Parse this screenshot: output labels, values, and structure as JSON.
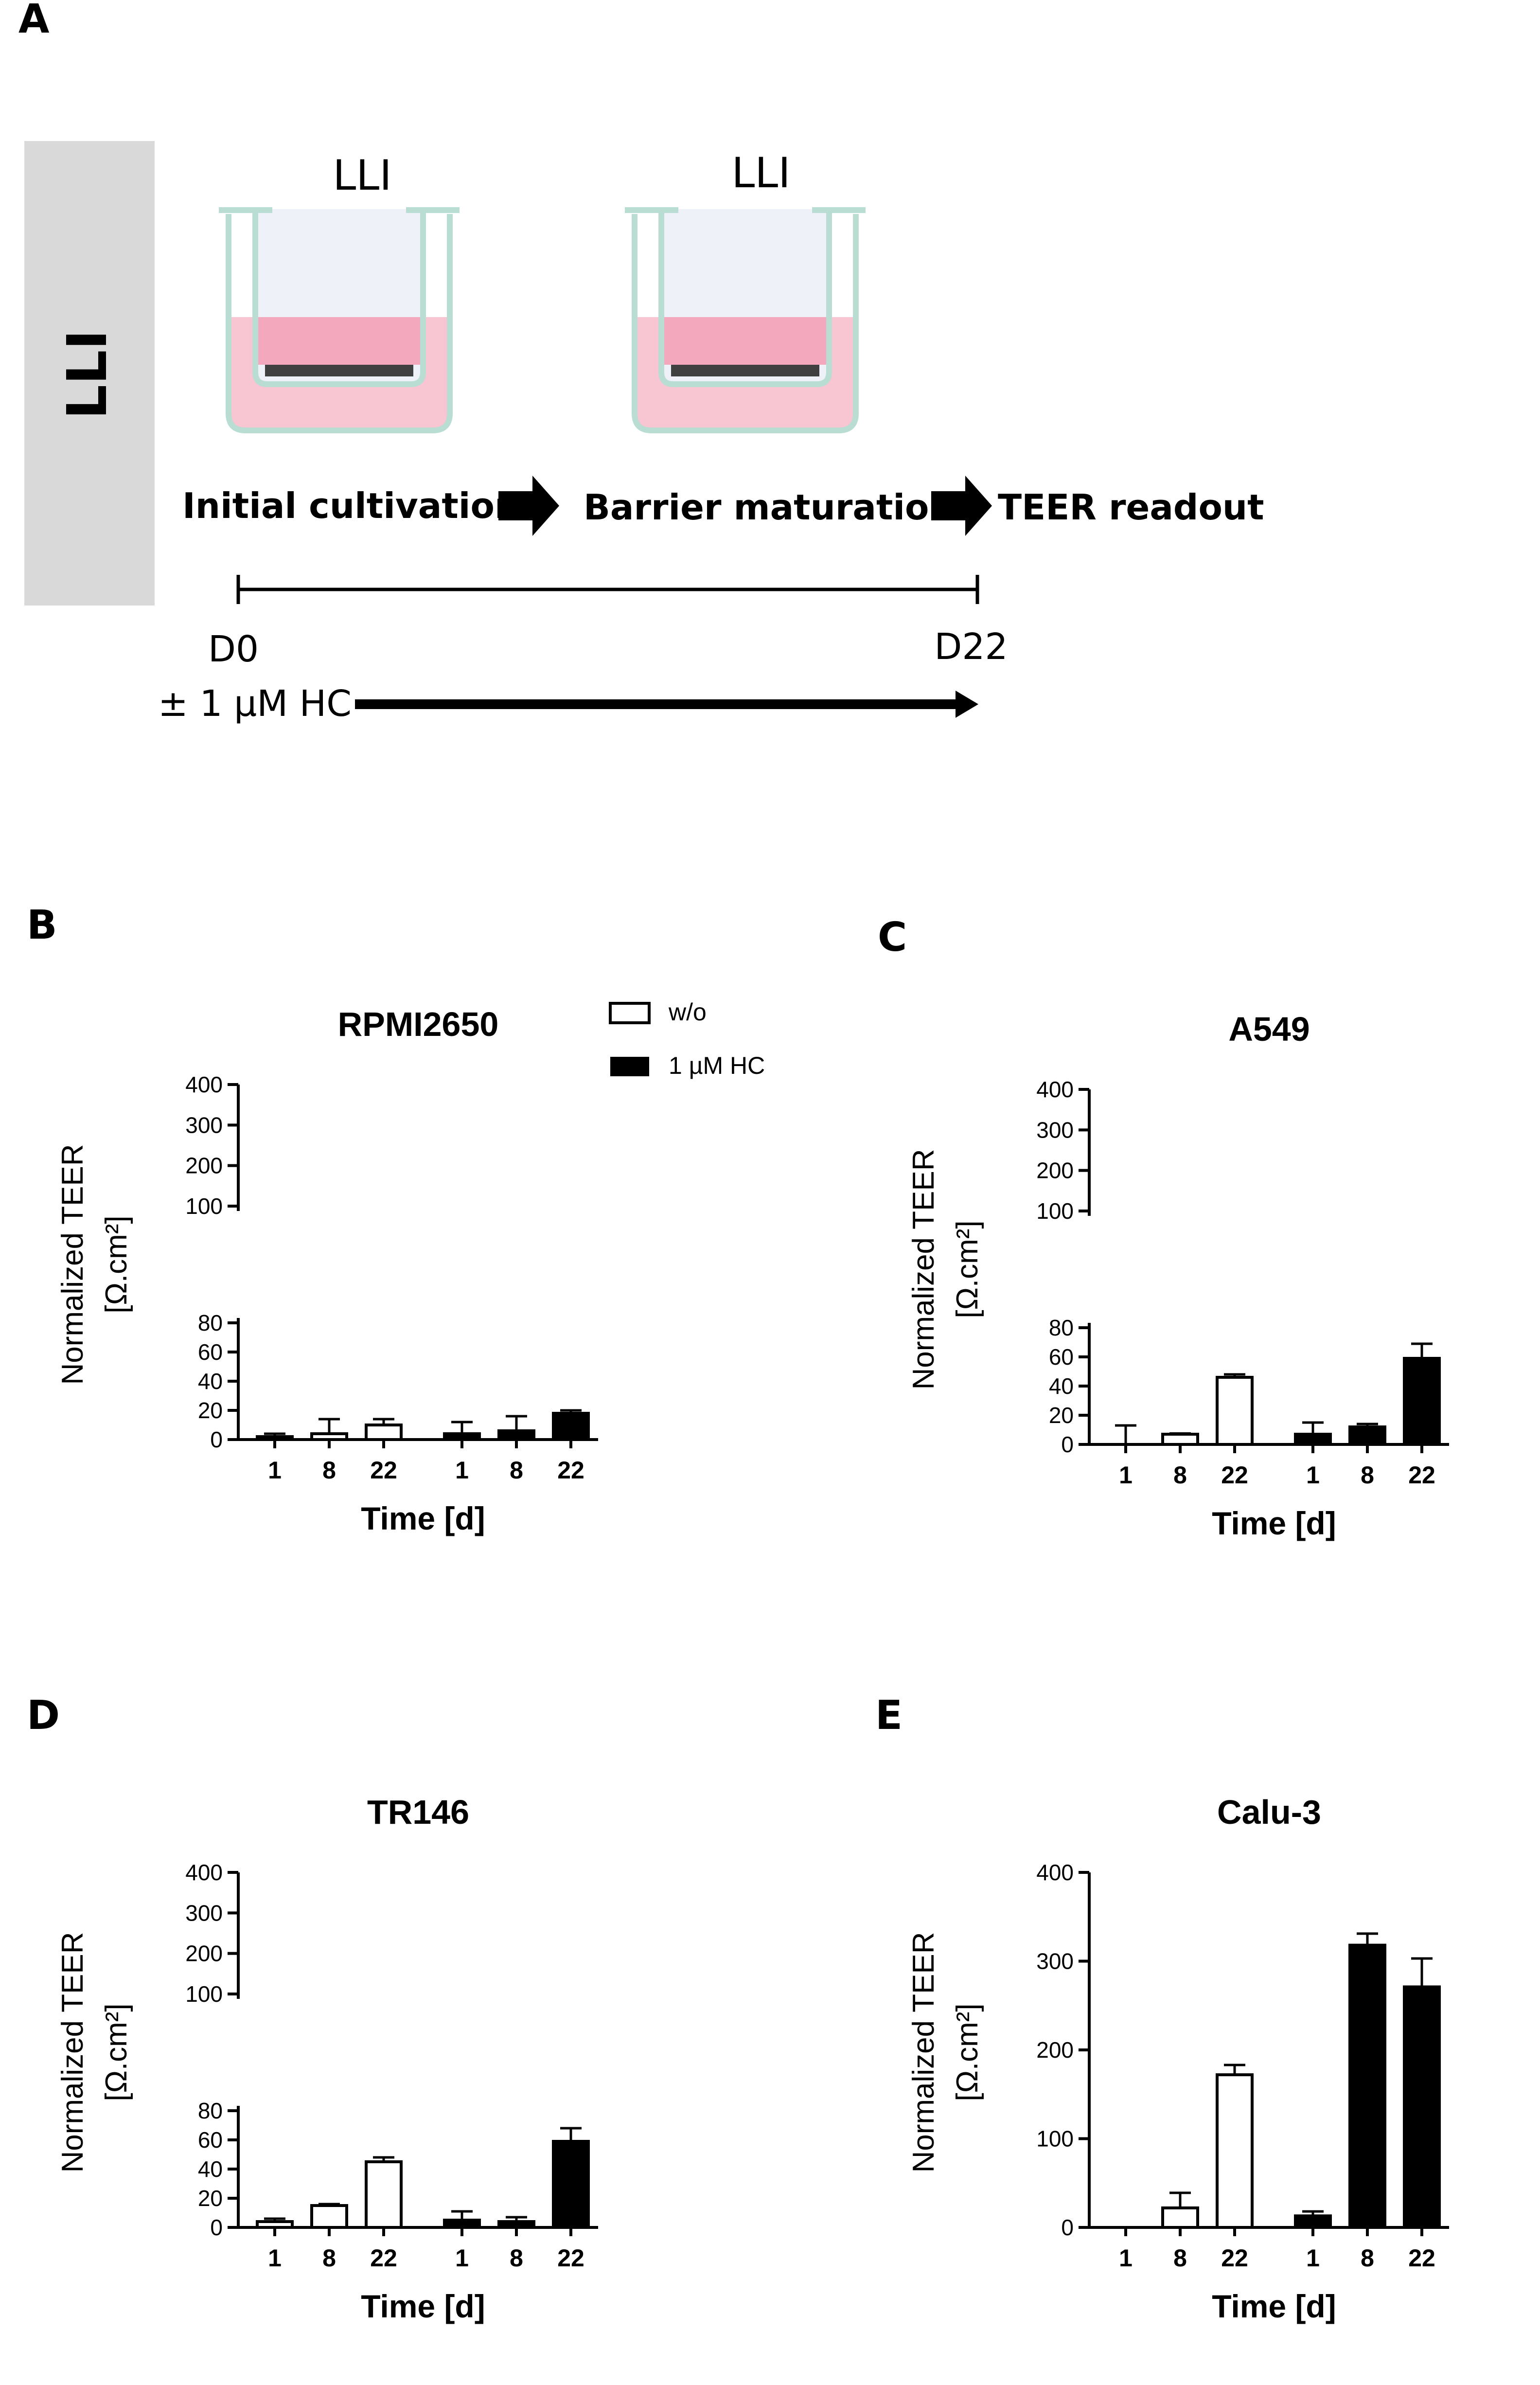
{
  "panel_a": {
    "letter": "A",
    "side_label": "LLI",
    "wells": [
      "LLI",
      "LLI"
    ],
    "steps": [
      "Initial cultivation",
      "Barrier maturation",
      "TEER readout"
    ],
    "timeline_start": "D0",
    "timeline_end": "D22",
    "treatment": "± 1 µM HC",
    "colors": {
      "side_bar": "#d9d9d9",
      "medium": "#f5c2cf",
      "apical": "#f3a8bd",
      "well_wall": "#b9ddd3",
      "cells": "#404040"
    }
  },
  "legend": {
    "series": [
      "w/o",
      "1 µM HC"
    ],
    "colors": [
      "#ffffff",
      "#000000"
    ]
  },
  "chart_data": [
    {
      "id": "B",
      "letter": "B",
      "type": "bar",
      "title": "RPMI2650",
      "xlabel": "Time [d]",
      "ylabel_line1": "Normalized TEER",
      "ylabel_line2": "[Ω.cm²]",
      "categories": [
        "1",
        "8",
        "22",
        "1",
        "8",
        "22"
      ],
      "groups": [
        {
          "name": "w/o",
          "fill": "#ffffff"
        },
        {
          "name": "1 µM HC",
          "fill": "#000000"
        }
      ],
      "values": [
        2,
        4,
        10,
        4,
        6,
        18
      ],
      "errors": [
        2,
        10,
        4,
        8,
        10,
        2
      ],
      "ylim": [
        0,
        400
      ],
      "broken_axis": true,
      "lower_ticks": [
        "0",
        "20",
        "40",
        "60",
        "80"
      ],
      "upper_ticks": [
        "100",
        "200",
        "300",
        "400"
      ]
    },
    {
      "id": "C",
      "letter": "C",
      "type": "bar",
      "title": "A549",
      "xlabel": "Time [d]",
      "ylabel_line1": "Normalized TEER",
      "ylabel_line2": "[Ω.cm²]",
      "categories": [
        "1",
        "8",
        "22",
        "1",
        "8",
        "22"
      ],
      "groups": [
        {
          "name": "w/o",
          "fill": "#ffffff"
        },
        {
          "name": "1 µM HC",
          "fill": "#000000"
        }
      ],
      "values": [
        0,
        7,
        46,
        7,
        12,
        59
      ],
      "errors": [
        13,
        0.5,
        2,
        8,
        2,
        10
      ],
      "ylim": [
        0,
        400
      ],
      "broken_axis": true,
      "lower_ticks": [
        "0",
        "20",
        "40",
        "60",
        "80"
      ],
      "upper_ticks": [
        "100",
        "200",
        "300",
        "400"
      ]
    },
    {
      "id": "D",
      "letter": "D",
      "type": "bar",
      "title": "TR146",
      "xlabel": "Time [d]",
      "ylabel_line1": "Normalized TEER",
      "ylabel_line2": "[Ω.cm²]",
      "categories": [
        "1",
        "8",
        "22",
        "1",
        "8",
        "22"
      ],
      "groups": [
        {
          "name": "w/o",
          "fill": "#ffffff"
        },
        {
          "name": "1 µM HC",
          "fill": "#000000"
        }
      ],
      "values": [
        4,
        15,
        45,
        5,
        4,
        59
      ],
      "errors": [
        2,
        1,
        3,
        6,
        3,
        9
      ],
      "ylim": [
        0,
        400
      ],
      "broken_axis": true,
      "lower_ticks": [
        "0",
        "20",
        "40",
        "60",
        "80"
      ],
      "upper_ticks": [
        "100",
        "200",
        "300",
        "400"
      ]
    },
    {
      "id": "E",
      "letter": "E",
      "type": "bar",
      "title": "Calu-3",
      "xlabel": "Time [d]",
      "ylabel_line1": "Normalized TEER",
      "ylabel_line2": "[Ω.cm²]",
      "categories": [
        "1",
        "8",
        "22",
        "1",
        "8",
        "22"
      ],
      "groups": [
        {
          "name": "w/o",
          "fill": "#ffffff"
        },
        {
          "name": "1 µM HC",
          "fill": "#000000"
        }
      ],
      "values": [
        0,
        22,
        172,
        13,
        318,
        271
      ],
      "errors": [
        0,
        17,
        11,
        5,
        13,
        32
      ],
      "ylim": [
        0,
        400
      ],
      "broken_axis": false,
      "ticks": [
        "0",
        "100",
        "200",
        "300",
        "400"
      ]
    }
  ]
}
